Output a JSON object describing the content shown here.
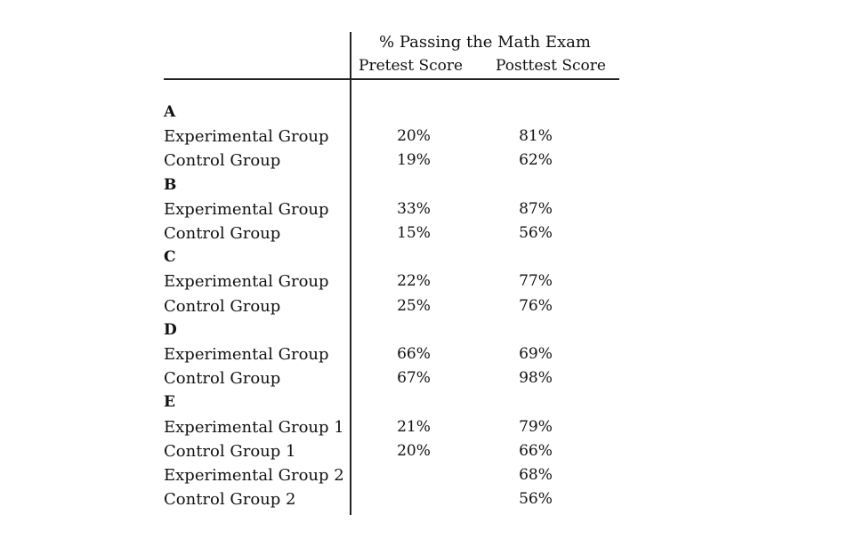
{
  "header": {
    "title": "% Passing the Math Exam",
    "pretest_label": "Pretest Score",
    "posttest_label": "Posttest Score"
  },
  "sections": [
    {
      "name": "A",
      "rows": [
        {
          "label": "Experimental Group",
          "pretest": "20%",
          "posttest": "81%"
        },
        {
          "label": "Control Group",
          "pretest": "19%",
          "posttest": "62%"
        }
      ]
    },
    {
      "name": "B",
      "rows": [
        {
          "label": "Experimental Group",
          "pretest": "33%",
          "posttest": "87%"
        },
        {
          "label": "Control Group",
          "pretest": "15%",
          "posttest": "56%"
        }
      ]
    },
    {
      "name": "C",
      "rows": [
        {
          "label": "Experimental Group",
          "pretest": "22%",
          "posttest": "77%"
        },
        {
          "label": "Control Group",
          "pretest": "25%",
          "posttest": "76%"
        }
      ]
    },
    {
      "name": "D",
      "rows": [
        {
          "label": "Experimental Group",
          "pretest": "66%",
          "posttest": "69%"
        },
        {
          "label": "Control Group",
          "pretest": "67%",
          "posttest": "98%"
        }
      ]
    },
    {
      "name": "E",
      "rows": [
        {
          "label": "Experimental Group 1",
          "pretest": "21%",
          "posttest": "79%"
        },
        {
          "label": "Control Group 1",
          "pretest": "20%",
          "posttest": "66%"
        },
        {
          "label": "Experimental Group 2",
          "pretest": "",
          "posttest": "68%"
        },
        {
          "label": "Control Group 2",
          "pretest": "",
          "posttest": "56%"
        }
      ]
    }
  ]
}
